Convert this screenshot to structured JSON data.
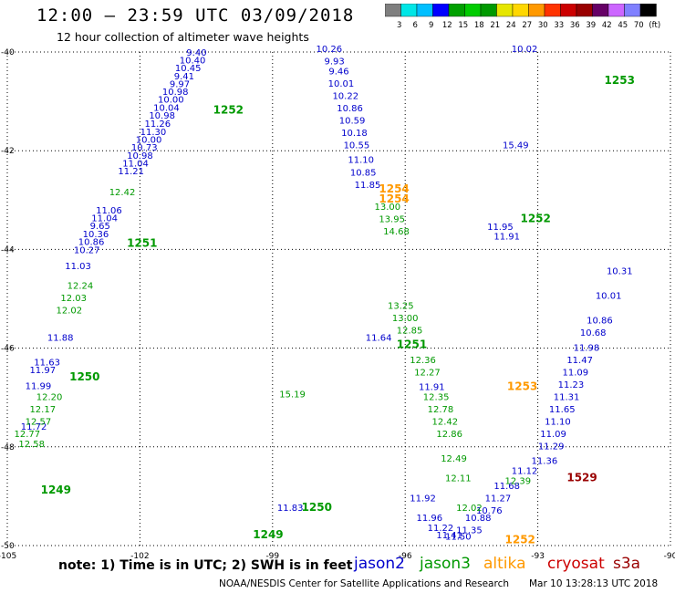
{
  "header": {
    "title": "12:00 – 23:59 UTC 03/09/2018",
    "subtitle": "12 hour collection of altimeter wave heights"
  },
  "colorbar": {
    "labels": [
      "3",
      "6",
      "9",
      "12",
      "15",
      "18",
      "21",
      "24",
      "27",
      "30",
      "33",
      "36",
      "39",
      "42",
      "45",
      "70",
      "(ft)"
    ],
    "colors": [
      "#7f7f7f",
      "#00e6e6",
      "#00bfff",
      "#0000ff",
      "#00a000",
      "#00cc00",
      "#009900",
      "#e6e600",
      "#ffd700",
      "#ff9900",
      "#ff3300",
      "#cc0000",
      "#990000",
      "#660066",
      "#cc66ff",
      "#8080ff",
      "#000000"
    ]
  },
  "footer": {
    "note": "note: 1) Time is in UTC; 2) SWH is in feet",
    "credit": "NOAA/NESDIS Center for Satellite Applications and Research",
    "timestamp": "Mar 10 13:28:13 UTC 2018"
  },
  "satellites": [
    {
      "name": "jason2",
      "color": "#0000cc"
    },
    {
      "name": "jason3",
      "color": "#009900"
    },
    {
      "name": "altika",
      "color": "#ff9900"
    },
    {
      "name": "cryosat",
      "color": "#cc0000"
    },
    {
      "name": "s3a",
      "color": "#990000"
    }
  ],
  "chart_data": {
    "type": "scatter",
    "title": "",
    "xlabel": "",
    "ylabel": "",
    "xlim": [
      -105,
      -90
    ],
    "ylim": [
      -50,
      -40
    ],
    "x_ticks": [
      "-105",
      "-102",
      "-99",
      "-96",
      "-93",
      "-90"
    ],
    "y_ticks": [
      "-40",
      "-42",
      "-44",
      "-46",
      "-48",
      "-50"
    ],
    "grid": true,
    "series": [
      {
        "name": "jason2",
        "color": "#0000cc",
        "points": [
          {
            "lon": -100.72,
            "lat": -40.07,
            "v": "9.40"
          },
          {
            "lon": -100.81,
            "lat": -40.23,
            "v": "10.40"
          },
          {
            "lon": -100.91,
            "lat": -40.39,
            "v": "10.45"
          },
          {
            "lon": -101.0,
            "lat": -40.55,
            "v": "9.41"
          },
          {
            "lon": -101.1,
            "lat": -40.71,
            "v": "9.97"
          },
          {
            "lon": -101.2,
            "lat": -40.87,
            "v": "10.98"
          },
          {
            "lon": -101.3,
            "lat": -41.03,
            "v": "10.00"
          },
          {
            "lon": -101.4,
            "lat": -41.19,
            "v": "10.04"
          },
          {
            "lon": -101.5,
            "lat": -41.35,
            "v": "10.98"
          },
          {
            "lon": -101.6,
            "lat": -41.52,
            "v": "11.26"
          },
          {
            "lon": -101.7,
            "lat": -41.68,
            "v": "11.30"
          },
          {
            "lon": -101.8,
            "lat": -41.84,
            "v": "10.00"
          },
          {
            "lon": -101.9,
            "lat": -42.0,
            "v": "10.73"
          },
          {
            "lon": -102.0,
            "lat": -42.16,
            "v": "10.98"
          },
          {
            "lon": -102.1,
            "lat": -42.32,
            "v": "11.04"
          },
          {
            "lon": -102.2,
            "lat": -42.48,
            "v": "11.21"
          },
          {
            "lon": -102.7,
            "lat": -43.27,
            "v": "11.06"
          },
          {
            "lon": -102.8,
            "lat": -43.43,
            "v": "11.04"
          },
          {
            "lon": -102.9,
            "lat": -43.59,
            "v": "9.65"
          },
          {
            "lon": -103.0,
            "lat": -43.75,
            "v": "10.36"
          },
          {
            "lon": -103.1,
            "lat": -43.91,
            "v": "10.86"
          },
          {
            "lon": -103.2,
            "lat": -44.08,
            "v": "10.27"
          },
          {
            "lon": -103.4,
            "lat": -44.4,
            "v": "11.03"
          },
          {
            "lon": -103.8,
            "lat": -45.85,
            "v": "11.88"
          },
          {
            "lon": -104.1,
            "lat": -46.35,
            "v": "11.63"
          },
          {
            "lon": -104.2,
            "lat": -46.51,
            "v": "11.97"
          },
          {
            "lon": -104.3,
            "lat": -46.83,
            "v": "11.99"
          },
          {
            "lon": -104.4,
            "lat": -47.65,
            "v": "11.72"
          },
          {
            "lon": -97.72,
            "lat": -40.0,
            "v": "10.26"
          },
          {
            "lon": -97.6,
            "lat": -40.25,
            "v": "9.93"
          },
          {
            "lon": -97.5,
            "lat": -40.45,
            "v": "9.46"
          },
          {
            "lon": -97.45,
            "lat": -40.7,
            "v": "10.01"
          },
          {
            "lon": -97.35,
            "lat": -40.95,
            "v": "10.22"
          },
          {
            "lon": -97.25,
            "lat": -41.2,
            "v": "10.86"
          },
          {
            "lon": -97.2,
            "lat": -41.45,
            "v": "10.59"
          },
          {
            "lon": -97.15,
            "lat": -41.7,
            "v": "10.18"
          },
          {
            "lon": -97.1,
            "lat": -41.95,
            "v": "10.55"
          },
          {
            "lon": -97.0,
            "lat": -42.25,
            "v": "11.10"
          },
          {
            "lon": -96.95,
            "lat": -42.5,
            "v": "10.85"
          },
          {
            "lon": -96.85,
            "lat": -42.75,
            "v": "11.85"
          },
          {
            "lon": -96.6,
            "lat": -45.85,
            "v": "11.64"
          },
          {
            "lon": -93.3,
            "lat": -40.0,
            "v": "10.02"
          },
          {
            "lon": -93.5,
            "lat": -41.95,
            "v": "15.49"
          },
          {
            "lon": -93.7,
            "lat": -43.8,
            "v": "11.91"
          },
          {
            "lon": -93.85,
            "lat": -43.6,
            "v": "11.95"
          },
          {
            "lon": -95.4,
            "lat": -46.85,
            "v": "11.91"
          },
          {
            "lon": -95.6,
            "lat": -49.1,
            "v": "11.92"
          },
          {
            "lon": -95.45,
            "lat": -49.5,
            "v": "11.96"
          },
          {
            "lon": -95.2,
            "lat": -49.7,
            "v": "11.22"
          },
          {
            "lon": -95.0,
            "lat": -49.85,
            "v": "11.41"
          },
          {
            "lon": -94.8,
            "lat": -49.88,
            "v": "11.50"
          },
          {
            "lon": -94.55,
            "lat": -49.75,
            "v": "11.35"
          },
          {
            "lon": -94.35,
            "lat": -49.5,
            "v": "10.88"
          },
          {
            "lon": -94.1,
            "lat": -49.35,
            "v": "10.76"
          },
          {
            "lon": -93.9,
            "lat": -49.1,
            "v": "11.27"
          },
          {
            "lon": -93.7,
            "lat": -48.85,
            "v": "11.68"
          },
          {
            "lon": -93.3,
            "lat": -48.55,
            "v": "11.12"
          },
          {
            "lon": -92.85,
            "lat": -48.35,
            "v": "11.36"
          },
          {
            "lon": -92.7,
            "lat": -48.05,
            "v": "11.29"
          },
          {
            "lon": -92.65,
            "lat": -47.8,
            "v": "11.09"
          },
          {
            "lon": -92.55,
            "lat": -47.55,
            "v": "11.10"
          },
          {
            "lon": -92.45,
            "lat": -47.3,
            "v": "11.65"
          },
          {
            "lon": -92.35,
            "lat": -47.05,
            "v": "11.31"
          },
          {
            "lon": -92.25,
            "lat": -46.8,
            "v": "11.23"
          },
          {
            "lon": -92.15,
            "lat": -46.55,
            "v": "11.09"
          },
          {
            "lon": -92.05,
            "lat": -46.3,
            "v": "11.47"
          },
          {
            "lon": -91.9,
            "lat": -46.05,
            "v": "11.98"
          },
          {
            "lon": -91.75,
            "lat": -45.75,
            "v": "10.68"
          },
          {
            "lon": -91.6,
            "lat": -45.5,
            "v": "10.86"
          },
          {
            "lon": -91.4,
            "lat": -45.0,
            "v": "10.01"
          },
          {
            "lon": -91.15,
            "lat": -44.5,
            "v": "10.31"
          },
          {
            "lon": -98.6,
            "lat": -49.3,
            "v": "11.83"
          }
        ]
      },
      {
        "name": "jason3",
        "color": "#009900",
        "points": [
          {
            "lon": -104.45,
            "lat": -48.0,
            "v": "12.58"
          },
          {
            "lon": -104.55,
            "lat": -47.8,
            "v": "12.77"
          },
          {
            "lon": -104.3,
            "lat": -47.55,
            "v": "12.57"
          },
          {
            "lon": -104.2,
            "lat": -47.3,
            "v": "12.17"
          },
          {
            "lon": -104.05,
            "lat": -47.05,
            "v": "12.20"
          },
          {
            "lon": -103.6,
            "lat": -45.3,
            "v": "12.02"
          },
          {
            "lon": -103.5,
            "lat": -45.05,
            "v": "12.03"
          },
          {
            "lon": -103.35,
            "lat": -44.8,
            "v": "12.24"
          },
          {
            "lon": -102.4,
            "lat": -42.9,
            "v": "12.42"
          },
          {
            "lon": -96.4,
            "lat": -43.2,
            "v": "13.00"
          },
          {
            "lon": -96.3,
            "lat": -43.45,
            "v": "13.95"
          },
          {
            "lon": -96.2,
            "lat": -43.7,
            "v": "14.68"
          },
          {
            "lon": -96.1,
            "lat": -45.2,
            "v": "13.25"
          },
          {
            "lon": -96.0,
            "lat": -45.45,
            "v": "13.00"
          },
          {
            "lon": -95.9,
            "lat": -45.7,
            "v": "12.85"
          },
          {
            "lon": -95.6,
            "lat": -46.3,
            "v": "12.36"
          },
          {
            "lon": -95.5,
            "lat": -46.55,
            "v": "12.27"
          },
          {
            "lon": -95.3,
            "lat": -47.05,
            "v": "12.35"
          },
          {
            "lon": -95.2,
            "lat": -47.3,
            "v": "12.78"
          },
          {
            "lon": -95.1,
            "lat": -47.55,
            "v": "12.42"
          },
          {
            "lon": -95.0,
            "lat": -47.8,
            "v": "12.86"
          },
          {
            "lon": -94.9,
            "lat": -48.3,
            "v": "12.49"
          },
          {
            "lon": -94.8,
            "lat": -48.7,
            "v": "12.11"
          },
          {
            "lon": -94.55,
            "lat": -49.3,
            "v": "12.02"
          },
          {
            "lon": -93.45,
            "lat": -48.75,
            "v": "12.39"
          },
          {
            "lon": -98.55,
            "lat": -47.0,
            "v": "15.19"
          }
        ]
      },
      {
        "name": "altika",
        "color": "#ff9900",
        "points": [
          {
            "lon": -94.4,
            "lat": -49.65,
            "v": ""
          },
          {
            "lon": -94.45,
            "lat": -46.9,
            "v": ""
          }
        ]
      }
    ],
    "pass_labels": [
      {
        "text": "1252",
        "sat": "jason3",
        "lon": -100.0,
        "lat": -41.25
      },
      {
        "text": "1251",
        "sat": "jason3",
        "lon": -101.95,
        "lat": -43.95
      },
      {
        "text": "1250",
        "sat": "jason3",
        "lon": -103.25,
        "lat": -46.65
      },
      {
        "text": "1249",
        "sat": "jason3",
        "lon": -103.9,
        "lat": -48.95
      },
      {
        "text": "1254",
        "sat": "altika",
        "lon": -96.25,
        "lat": -42.85
      },
      {
        "text": "1254",
        "sat": "altika",
        "lon": -96.25,
        "lat": -43.05
      },
      {
        "text": "1252",
        "sat": "jason3",
        "lon": -93.05,
        "lat": -43.45
      },
      {
        "text": "1253",
        "sat": "jason3",
        "lon": -91.15,
        "lat": -40.65
      },
      {
        "text": "1251",
        "sat": "jason3",
        "lon": -95.85,
        "lat": -46.0
      },
      {
        "text": "1253",
        "sat": "altika",
        "lon": -93.35,
        "lat": -46.85
      },
      {
        "text": "1250",
        "sat": "jason3",
        "lon": -98.0,
        "lat": -49.3
      },
      {
        "text": "1529",
        "sat": "s3a",
        "lon": -92.0,
        "lat": -48.7
      },
      {
        "text": "1252",
        "sat": "altika",
        "lon": -93.4,
        "lat": -49.95
      },
      {
        "text": "1249",
        "sat": "jason3",
        "lon": -99.1,
        "lat": -49.85
      }
    ]
  }
}
